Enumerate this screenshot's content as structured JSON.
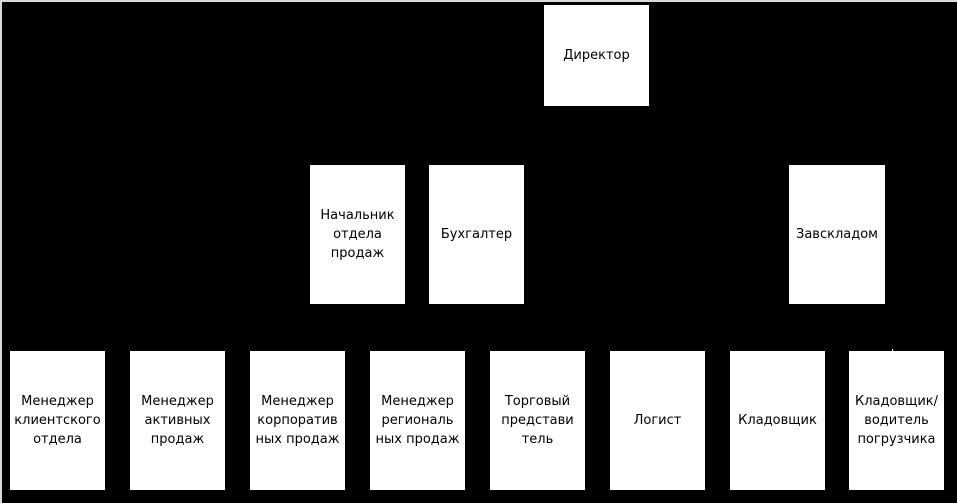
{
  "colors": {
    "background": "#000000",
    "box": "#ffffff",
    "text": "#000000"
  },
  "chart": {
    "director": "Директор",
    "level2": [
      "Начальник\nотдела\nпродаж",
      "Бухгалтер",
      "Завскладом"
    ],
    "level3": [
      "Менеджер\nклиентского\nотдела",
      "Менеджер\nактивных\nпродаж",
      "Менеджер\nкорпоратив\nных продаж",
      "Менеджер\nрегиональ\nных продаж",
      "Торговый\nпредстави\nтель",
      "Логист",
      "Кладовщик",
      "Кладовщик/\nводитель\nпогрузчика"
    ]
  }
}
